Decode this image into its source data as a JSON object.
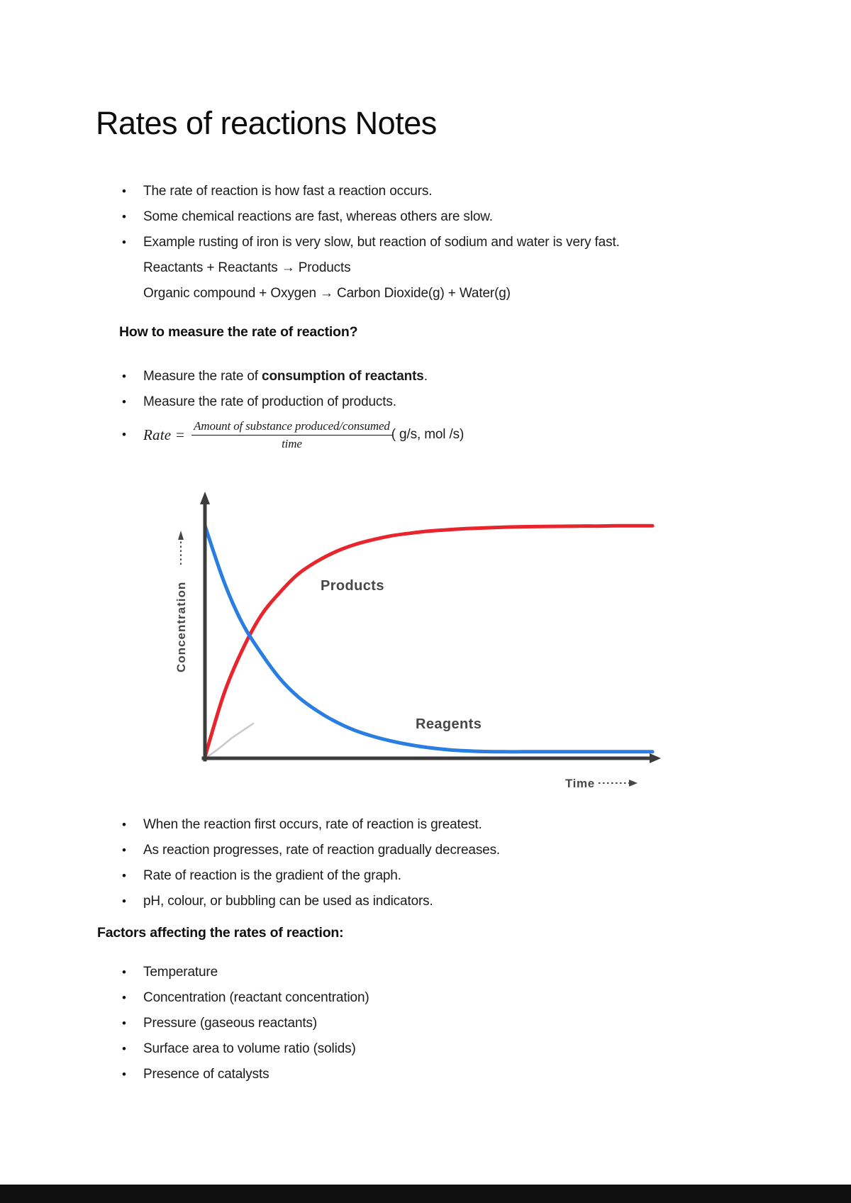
{
  "title": "Rates of reactions Notes",
  "intro": {
    "bullets": [
      "The rate of reaction is how fast a reaction occurs.",
      "Some chemical reactions are fast, whereas others are slow.",
      "Example rusting of iron is very slow, but reaction of sodium and water is very fast."
    ],
    "equations": [
      "Reactants + Reactants → Products",
      "Organic compound + Oxygen → Carbon Dioxide(g) + Water(g)"
    ]
  },
  "measure_section": {
    "heading": "How to measure the rate of reaction?",
    "bullet1_prefix": "Measure the rate of ",
    "bullet1_bold": "consumption of reactants",
    "bullet1_suffix": ".",
    "bullet2": "Measure the rate of production of products.",
    "formula": {
      "lhs": "Rate =",
      "numerator": "Amount of substance produced/consumed",
      "denominator": "time",
      "units": "( g/s, mol /s)"
    }
  },
  "graph": {
    "y_axis_label": "Concentration",
    "x_axis_label": "Time",
    "products_label": "Products",
    "reagents_label": "Reagents",
    "products_color": "#e8252c",
    "reagents_color": "#2a7de1",
    "axis_color": "#3c3c3c"
  },
  "chart_data": {
    "type": "line",
    "title": "",
    "xlabel": "Time",
    "ylabel": "Concentration",
    "legend_position": "inline-labels",
    "grid": false,
    "axis_ticks": "none (qualitative sketch, normalized 0-1)",
    "x": [
      0,
      0.042,
      0.083,
      0.125,
      0.167,
      0.208,
      0.25,
      0.292,
      0.333,
      0.375,
      0.417,
      0.458,
      0.5,
      0.542,
      0.583,
      0.625,
      0.667,
      0.708,
      0.75,
      0.792,
      0.833,
      0.875,
      0.917,
      0.958,
      1
    ],
    "series": [
      {
        "name": "Products",
        "color": "#e8252c",
        "values": [
          0,
          0.27,
          0.46,
          0.61,
          0.71,
          0.79,
          0.845,
          0.887,
          0.917,
          0.939,
          0.956,
          0.967,
          0.976,
          0.982,
          0.987,
          0.99,
          0.993,
          0.995,
          0.996,
          0.997,
          0.998,
          0.998,
          0.999,
          0.999,
          0.999
        ]
      },
      {
        "name": "Reagents",
        "color": "#2a7de1",
        "values": [
          1,
          0.76,
          0.58,
          0.45,
          0.34,
          0.26,
          0.2,
          0.152,
          0.116,
          0.089,
          0.068,
          0.052,
          0.04,
          0.031,
          0.026,
          0.023,
          0.022,
          0.022,
          0.022,
          0.022,
          0.022,
          0.022,
          0.022,
          0.022,
          0.022
        ]
      }
    ]
  },
  "observations": {
    "bullets": [
      "When the reaction first occurs, rate of reaction is greatest.",
      "As reaction progresses, rate of reaction gradually decreases.",
      "Rate of reaction is the gradient of the graph.",
      "pH, colour, or bubbling can be used as indicators."
    ]
  },
  "factors_section": {
    "heading": "Factors affecting the rates of reaction:",
    "bullets": [
      "Temperature",
      "Concentration (reactant concentration)",
      "Pressure (gaseous reactants)",
      "Surface area to volume ratio (solids)",
      "Presence of catalysts"
    ]
  }
}
